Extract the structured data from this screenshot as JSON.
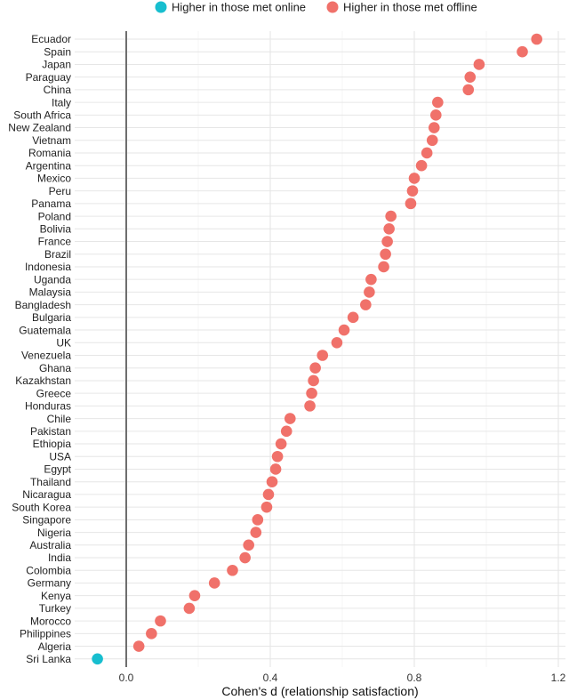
{
  "chart_data": {
    "type": "scatter",
    "xlabel": "Cohen's d (relationship satisfaction)",
    "ylabel": "",
    "xlim": [
      -0.1,
      1.2
    ],
    "xticks": [
      "0.0",
      "0.4",
      "0.8",
      "1.2"
    ],
    "grid": true,
    "legend_position": "top",
    "legend": [
      {
        "label": "Higher in those met online",
        "color": "#17BECF"
      },
      {
        "label": "Higher in those met offline",
        "color": "#F0716A"
      }
    ],
    "reference_line_x": 0,
    "points": [
      {
        "country": "Ecuador",
        "d": 1.14,
        "group": "offline"
      },
      {
        "country": "Spain",
        "d": 1.1,
        "group": "offline"
      },
      {
        "country": "Japan",
        "d": 0.98,
        "group": "offline"
      },
      {
        "country": "Paraguay",
        "d": 0.955,
        "group": "offline"
      },
      {
        "country": "China",
        "d": 0.95,
        "group": "offline"
      },
      {
        "country": "Italy",
        "d": 0.865,
        "group": "offline"
      },
      {
        "country": "South Africa",
        "d": 0.86,
        "group": "offline"
      },
      {
        "country": "New Zealand",
        "d": 0.855,
        "group": "offline"
      },
      {
        "country": "Vietnam",
        "d": 0.85,
        "group": "offline"
      },
      {
        "country": "Romania",
        "d": 0.835,
        "group": "offline"
      },
      {
        "country": "Argentina",
        "d": 0.82,
        "group": "offline"
      },
      {
        "country": "Mexico",
        "d": 0.8,
        "group": "offline"
      },
      {
        "country": "Peru",
        "d": 0.795,
        "group": "offline"
      },
      {
        "country": "Panama",
        "d": 0.79,
        "group": "offline"
      },
      {
        "country": "Poland",
        "d": 0.735,
        "group": "offline"
      },
      {
        "country": "Bolivia",
        "d": 0.73,
        "group": "offline"
      },
      {
        "country": "France",
        "d": 0.725,
        "group": "offline"
      },
      {
        "country": "Brazil",
        "d": 0.72,
        "group": "offline"
      },
      {
        "country": "Indonesia",
        "d": 0.715,
        "group": "offline"
      },
      {
        "country": "Uganda",
        "d": 0.68,
        "group": "offline"
      },
      {
        "country": "Malaysia",
        "d": 0.675,
        "group": "offline"
      },
      {
        "country": "Bangladesh",
        "d": 0.665,
        "group": "offline"
      },
      {
        "country": "Bulgaria",
        "d": 0.63,
        "group": "offline"
      },
      {
        "country": "Guatemala",
        "d": 0.605,
        "group": "offline"
      },
      {
        "country": "UK",
        "d": 0.585,
        "group": "offline"
      },
      {
        "country": "Venezuela",
        "d": 0.545,
        "group": "offline"
      },
      {
        "country": "Ghana",
        "d": 0.525,
        "group": "offline"
      },
      {
        "country": "Kazakhstan",
        "d": 0.52,
        "group": "offline"
      },
      {
        "country": "Greece",
        "d": 0.515,
        "group": "offline"
      },
      {
        "country": "Honduras",
        "d": 0.51,
        "group": "offline"
      },
      {
        "country": "Chile",
        "d": 0.455,
        "group": "offline"
      },
      {
        "country": "Pakistan",
        "d": 0.445,
        "group": "offline"
      },
      {
        "country": "Ethiopia",
        "d": 0.43,
        "group": "offline"
      },
      {
        "country": "USA",
        "d": 0.42,
        "group": "offline"
      },
      {
        "country": "Egypt",
        "d": 0.415,
        "group": "offline"
      },
      {
        "country": "Thailand",
        "d": 0.405,
        "group": "offline"
      },
      {
        "country": "Nicaragua",
        "d": 0.395,
        "group": "offline"
      },
      {
        "country": "South Korea",
        "d": 0.39,
        "group": "offline"
      },
      {
        "country": "Singapore",
        "d": 0.365,
        "group": "offline"
      },
      {
        "country": "Nigeria",
        "d": 0.36,
        "group": "offline"
      },
      {
        "country": "Australia",
        "d": 0.34,
        "group": "offline"
      },
      {
        "country": "India",
        "d": 0.33,
        "group": "offline"
      },
      {
        "country": "Colombia",
        "d": 0.295,
        "group": "offline"
      },
      {
        "country": "Germany",
        "d": 0.245,
        "group": "offline"
      },
      {
        "country": "Kenya",
        "d": 0.19,
        "group": "offline"
      },
      {
        "country": "Turkey",
        "d": 0.175,
        "group": "offline"
      },
      {
        "country": "Morocco",
        "d": 0.095,
        "group": "offline"
      },
      {
        "country": "Philippines",
        "d": 0.07,
        "group": "offline"
      },
      {
        "country": "Algeria",
        "d": 0.035,
        "group": "offline"
      },
      {
        "country": "Sri Lanka",
        "d": -0.08,
        "group": "online"
      }
    ]
  }
}
